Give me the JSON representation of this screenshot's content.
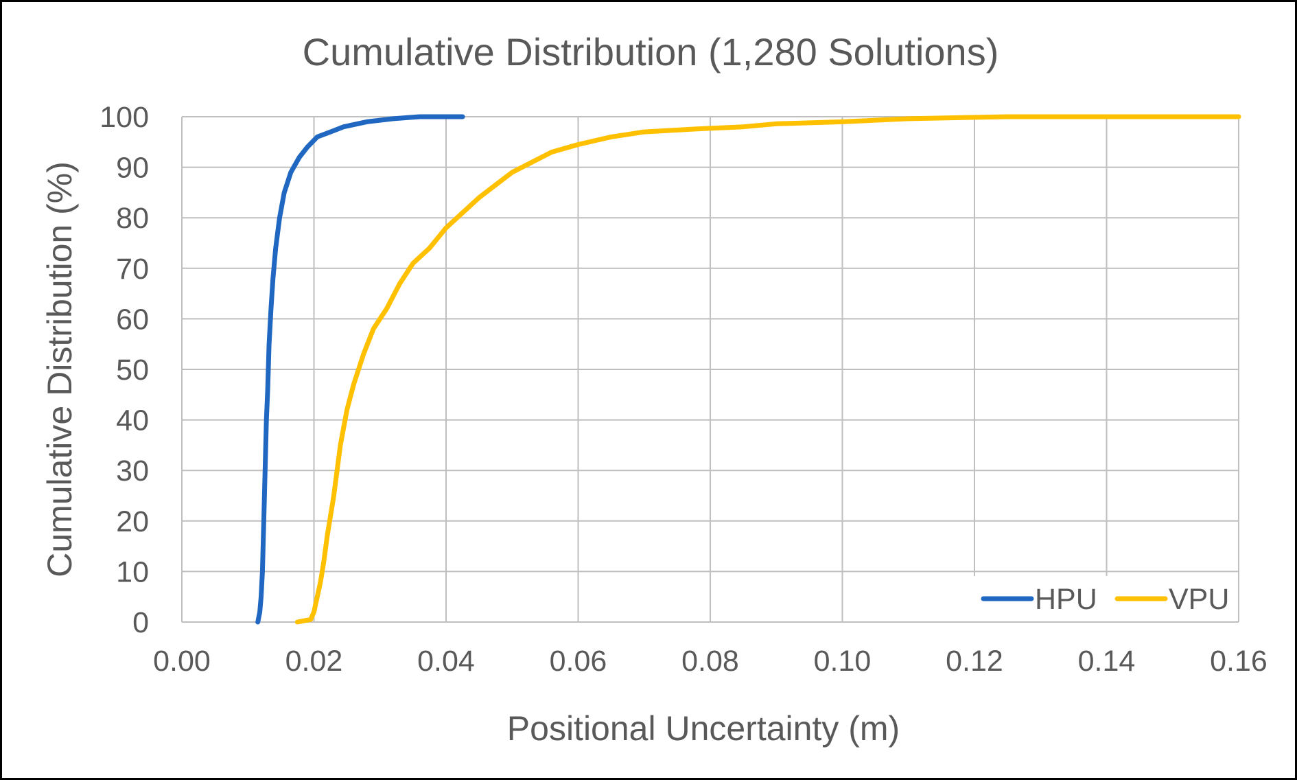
{
  "chart_data": {
    "type": "line",
    "title": "Cumulative Distribution (1,280 Solutions)",
    "xlabel": "Positional Uncertainty (m)",
    "ylabel": "Cumulative Distribution (%)",
    "xlim": [
      0,
      0.16
    ],
    "ylim": [
      0,
      100
    ],
    "x_ticks": [
      "0.00",
      "0.02",
      "0.04",
      "0.06",
      "0.08",
      "0.10",
      "0.12",
      "0.14",
      "0.16"
    ],
    "y_ticks": [
      "0",
      "10",
      "20",
      "30",
      "40",
      "50",
      "60",
      "70",
      "80",
      "90",
      "100"
    ],
    "grid": true,
    "legend_position": "bottom-right",
    "series": [
      {
        "name": "HPU",
        "color": "#1F67C1",
        "points": [
          [
            0.0115,
            0
          ],
          [
            0.0118,
            2
          ],
          [
            0.012,
            5
          ],
          [
            0.0122,
            10
          ],
          [
            0.0124,
            20
          ],
          [
            0.0126,
            30
          ],
          [
            0.0128,
            40
          ],
          [
            0.013,
            46
          ],
          [
            0.0132,
            55
          ],
          [
            0.0135,
            62
          ],
          [
            0.0138,
            68
          ],
          [
            0.0142,
            74
          ],
          [
            0.0148,
            80
          ],
          [
            0.0155,
            85
          ],
          [
            0.0165,
            89
          ],
          [
            0.0178,
            92
          ],
          [
            0.019,
            94
          ],
          [
            0.0205,
            96
          ],
          [
            0.0225,
            97
          ],
          [
            0.0245,
            98
          ],
          [
            0.028,
            99
          ],
          [
            0.032,
            99.6
          ],
          [
            0.036,
            100
          ],
          [
            0.0425,
            100
          ]
        ]
      },
      {
        "name": "VPU",
        "color": "#FFC000",
        "points": [
          [
            0.0175,
            0
          ],
          [
            0.0195,
            0.5
          ],
          [
            0.02,
            2
          ],
          [
            0.0205,
            5
          ],
          [
            0.021,
            8
          ],
          [
            0.0215,
            12
          ],
          [
            0.022,
            17
          ],
          [
            0.023,
            25
          ],
          [
            0.0235,
            30
          ],
          [
            0.024,
            35
          ],
          [
            0.025,
            42
          ],
          [
            0.026,
            47
          ],
          [
            0.0275,
            53
          ],
          [
            0.029,
            58
          ],
          [
            0.031,
            62
          ],
          [
            0.033,
            67
          ],
          [
            0.035,
            71
          ],
          [
            0.0375,
            74
          ],
          [
            0.04,
            78
          ],
          [
            0.0425,
            81
          ],
          [
            0.045,
            84
          ],
          [
            0.048,
            87
          ],
          [
            0.05,
            89
          ],
          [
            0.053,
            91
          ],
          [
            0.056,
            93
          ],
          [
            0.06,
            94.5
          ],
          [
            0.065,
            96
          ],
          [
            0.07,
            97
          ],
          [
            0.078,
            97.6
          ],
          [
            0.085,
            98
          ],
          [
            0.09,
            98.6
          ],
          [
            0.1,
            99
          ],
          [
            0.11,
            99.6
          ],
          [
            0.125,
            100
          ],
          [
            0.16,
            100
          ]
        ]
      }
    ]
  }
}
